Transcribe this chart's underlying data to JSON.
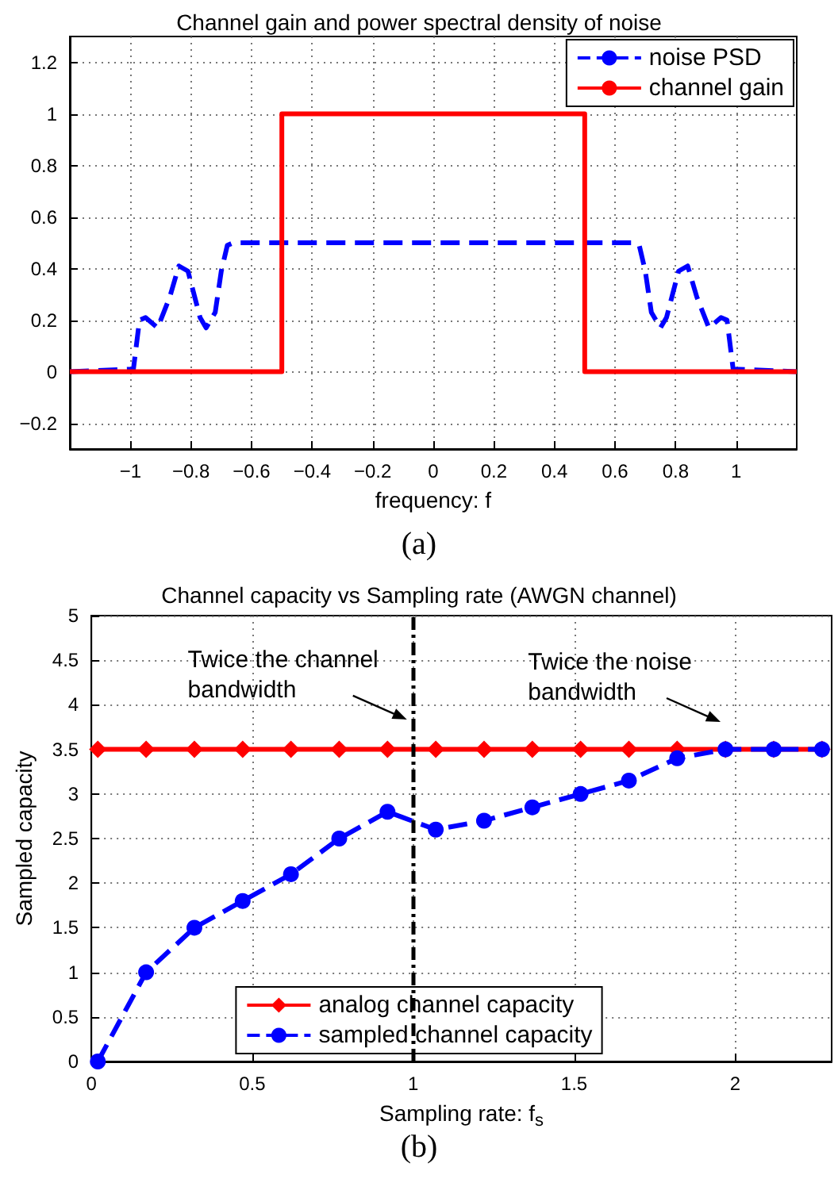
{
  "chart_data": [
    {
      "type": "line",
      "title": "Channel gain and power spectral density of noise",
      "xlabel": "frequency: f",
      "annotations": [
        "(a)"
      ],
      "xlim": [
        -1.2,
        1.2
      ],
      "xticks": [
        -1,
        -0.8,
        -0.6,
        -0.4,
        -0.2,
        0,
        0.2,
        0.4,
        0.6,
        0.8,
        1
      ],
      "ylim": [
        -0.3,
        1.3
      ],
      "yticks": [
        -0.2,
        0,
        0.2,
        0.4,
        0.6,
        0.8,
        1,
        1.2
      ],
      "grid": true,
      "legend": "top right",
      "marker": "none",
      "series": [
        {
          "name": "noise PSD",
          "color": "#0000ff",
          "line_style": "dashed",
          "x": [
            -1.2,
            -0.99,
            -0.97,
            -0.95,
            -0.91,
            -0.87,
            -0.84,
            -0.81,
            -0.77,
            -0.75,
            -0.72,
            -0.7,
            -0.68,
            -0.66,
            0.66,
            0.68,
            0.7,
            0.72,
            0.75,
            0.77,
            0.81,
            0.84,
            0.87,
            0.91,
            0.95,
            0.97,
            0.99,
            1.2
          ],
          "values": [
            0,
            0.01,
            0.2,
            0.21,
            0.17,
            0.29,
            0.41,
            0.39,
            0.21,
            0.17,
            0.23,
            0.39,
            0.49,
            0.5,
            0.5,
            0.49,
            0.39,
            0.23,
            0.17,
            0.21,
            0.39,
            0.41,
            0.29,
            0.17,
            0.21,
            0.2,
            0.01,
            0
          ]
        },
        {
          "name": "channel gain",
          "color": "#ff0000",
          "line_style": "solid",
          "x": [
            -1.2,
            -0.5,
            -0.5,
            0.5,
            0.5,
            1.2
          ],
          "values": [
            0,
            0,
            1,
            1,
            0,
            0
          ]
        }
      ]
    },
    {
      "type": "line",
      "title": "Channel capacity vs Sampling rate (AWGN channel)",
      "xlabel": "Sampling rate: f$_{s}$",
      "ylabel": "Sampled capacity",
      "annotations": [
        {
          "text": "Twice the channel bandwidth",
          "x": 1,
          "y": 3.8
        },
        "Twice the noise bandwidth",
        "(b)"
      ],
      "xlim": [
        0,
        2.3
      ],
      "xticks": [
        0,
        0.5,
        1,
        1.5,
        2
      ],
      "ylim": [
        0,
        5
      ],
      "yticks": [
        0,
        0.5,
        1,
        1.5,
        2,
        2.5,
        3,
        3.5,
        4,
        4.5,
        5
      ],
      "grid": true,
      "legend": "bottom",
      "ref_lines": [
        {
          "axis": "x",
          "value": 1,
          "color": "#000000",
          "line_style": "dashed"
        }
      ],
      "x": [
        0.02,
        0.17,
        0.32,
        0.47,
        0.62,
        0.77,
        0.92,
        1.07,
        1.22,
        1.37,
        1.52,
        1.67,
        1.82,
        1.97,
        2.12,
        2.27
      ],
      "series": [
        {
          "name": "analog channel capacity",
          "color": "#ff0000",
          "line_style": "solid",
          "marker": "diamond",
          "values": [
            3.5,
            3.5,
            3.5,
            3.5,
            3.5,
            3.5,
            3.5,
            3.5,
            3.5,
            3.5,
            3.5,
            3.5,
            3.5,
            3.5,
            3.5,
            3.5
          ]
        },
        {
          "name": "sampled channel capacity",
          "color": "#0000ff",
          "line_style": "dashed",
          "marker": "circle",
          "values": [
            0,
            1,
            1.5,
            1.8,
            2.1,
            2.5,
            2.8,
            2.6,
            2.7,
            2.85,
            3,
            3.15,
            3.4,
            3.5,
            3.5,
            3.5
          ]
        }
      ]
    }
  ]
}
